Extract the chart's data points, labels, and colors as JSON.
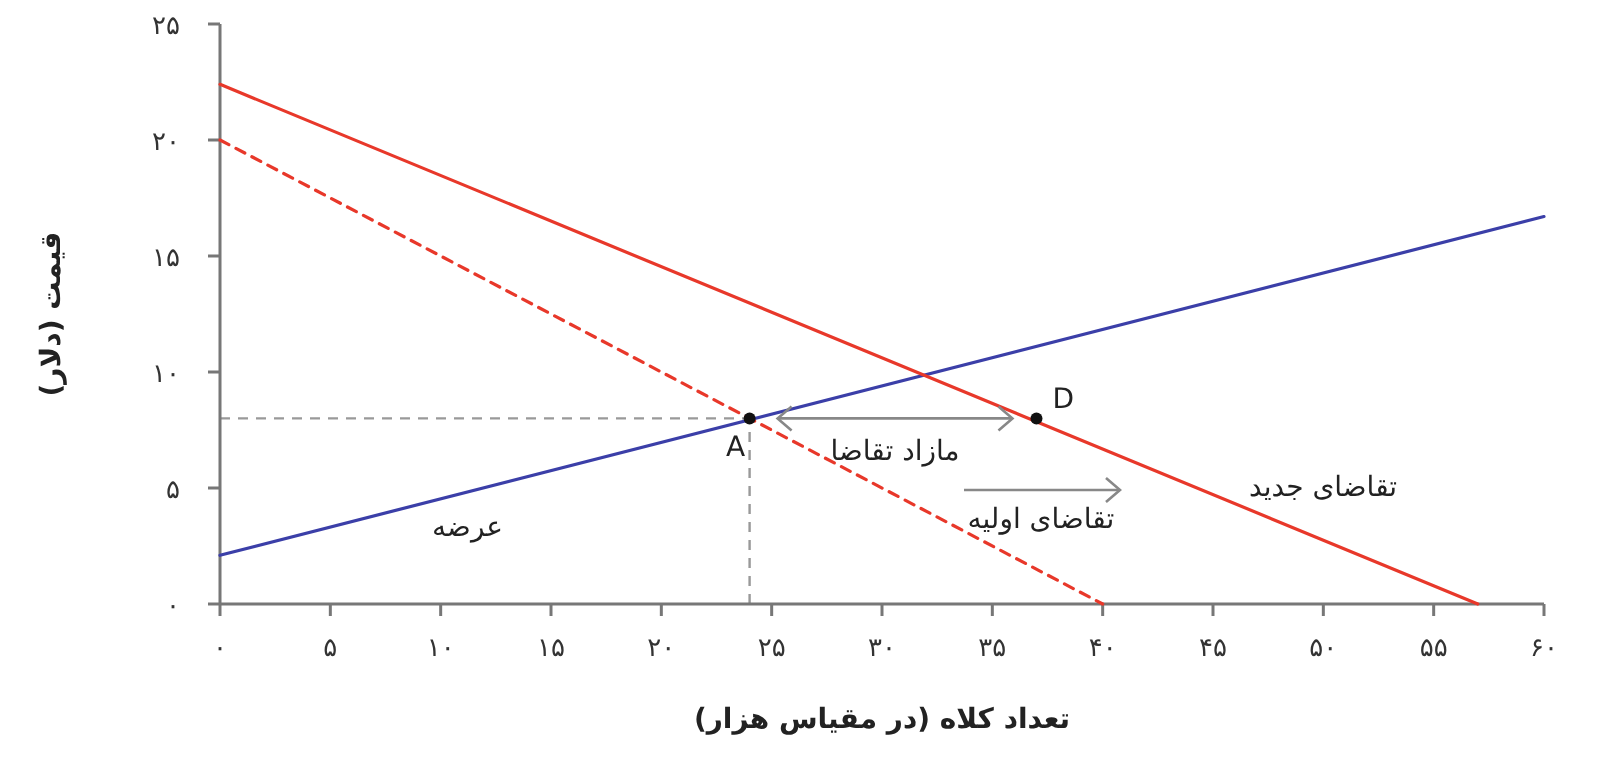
{
  "chart_data": {
    "type": "line",
    "xlabel": "تعداد کلاه (در مقیاس هزار)",
    "ylabel": "قیمت (دلار)",
    "xlim": [
      0,
      60
    ],
    "ylim": [
      0,
      25
    ],
    "xticks": [
      {
        "value": 0,
        "label": "۰"
      },
      {
        "value": 5,
        "label": "۵"
      },
      {
        "value": 10,
        "label": "۱۰"
      },
      {
        "value": 15,
        "label": "۱۵"
      },
      {
        "value": 20,
        "label": "۲۰"
      },
      {
        "value": 25,
        "label": "۲۵"
      },
      {
        "value": 30,
        "label": "۳۰"
      },
      {
        "value": 35,
        "label": "۳۵"
      },
      {
        "value": 40,
        "label": "۴۰"
      },
      {
        "value": 45,
        "label": "۴۵"
      },
      {
        "value": 50,
        "label": "۵۰"
      },
      {
        "value": 55,
        "label": "۵۵"
      },
      {
        "value": 60,
        "label": "۶۰"
      }
    ],
    "yticks": [
      {
        "value": 0,
        "label": "۰"
      },
      {
        "value": 5,
        "label": "۵"
      },
      {
        "value": 10,
        "label": "۱۰"
      },
      {
        "value": 15,
        "label": "۱۵"
      },
      {
        "value": 20,
        "label": "۲۰"
      },
      {
        "value": 25,
        "label": "۲۵"
      }
    ],
    "grid": false,
    "series": [
      {
        "name": "عرضه",
        "color": "#3b3fa8",
        "x": [
          0,
          60
        ],
        "values": [
          2.1,
          16.7
        ]
      },
      {
        "name": "تقاضای اولیه",
        "color": "#e8382a",
        "x": [
          0,
          40
        ],
        "values": [
          20,
          0
        ],
        "line_style": "dashed"
      },
      {
        "name": "تقاضای جدید",
        "color": "#e8382a",
        "x": [
          0,
          57
        ],
        "values": [
          22.4,
          0
        ]
      },
      {
        "type": "scatter",
        "color": "#111111",
        "x": [
          24,
          37
        ],
        "values": [
          8,
          8
        ],
        "value_labels": [
          "A",
          "D"
        ],
        "marker": "circle"
      }
    ],
    "ref_lines": [
      {
        "axis": "y",
        "value": 8,
        "color": "#999999",
        "line_style": "dashed"
      },
      {
        "axis": "x",
        "value": 24,
        "color": "#999999",
        "line_style": "dashed"
      }
    ],
    "annotations": [
      "مازاد تقاضا"
    ]
  }
}
